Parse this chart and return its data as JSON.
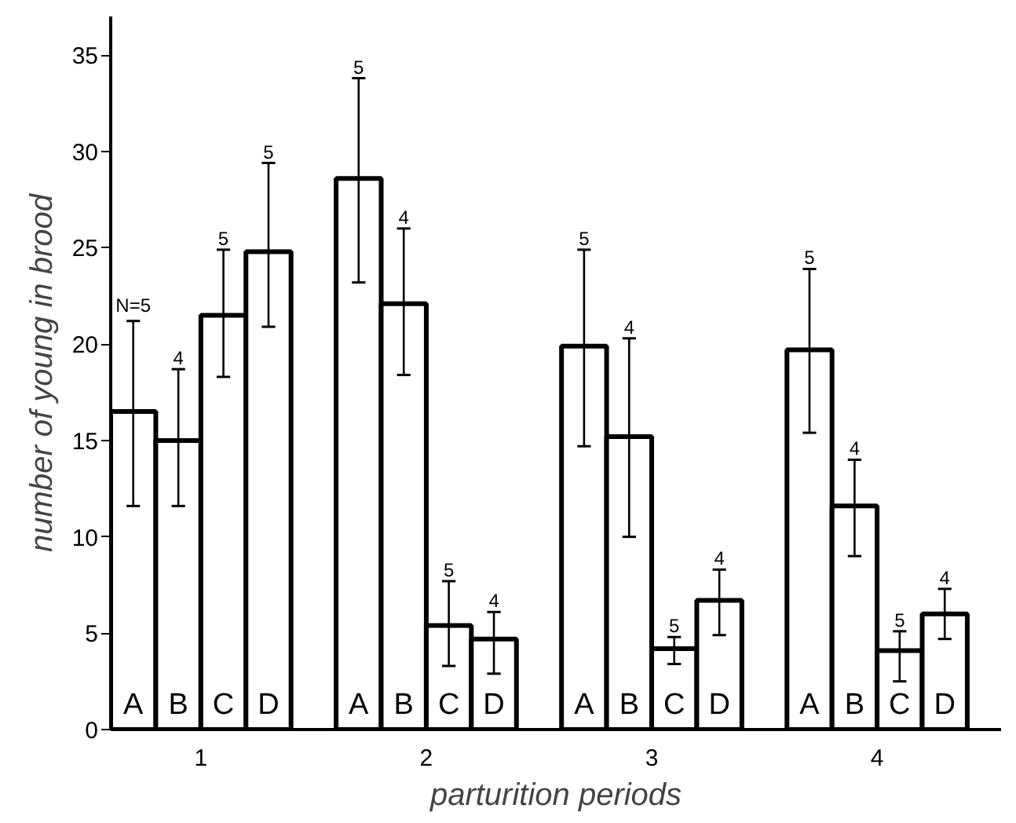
{
  "chart_data": {
    "type": "bar",
    "xlabel": "parturition periods",
    "ylabel": "number of young in brood",
    "categories": [
      "1",
      "2",
      "3",
      "4"
    ],
    "series": [
      {
        "name": "A",
        "color": "#000000",
        "values": [
          16.5,
          28.6,
          19.9,
          19.7
        ],
        "errors": [
          [
            11.6,
            21.2
          ],
          [
            23.2,
            33.8
          ],
          [
            14.7,
            24.9
          ],
          [
            15.4,
            23.9
          ]
        ]
      },
      {
        "name": "B",
        "color": "#000000",
        "values": [
          15.0,
          22.1,
          15.2,
          11.6
        ],
        "errors": [
          [
            11.6,
            18.7
          ],
          [
            18.4,
            26.0
          ],
          [
            10.0,
            20.3
          ],
          [
            9.0,
            14.0
          ]
        ]
      },
      {
        "name": "C",
        "color": "#000000",
        "values": [
          21.5,
          5.4,
          4.2,
          4.1
        ],
        "errors": [
          [
            18.3,
            24.9
          ],
          [
            3.3,
            7.7
          ],
          [
            3.4,
            4.8
          ],
          [
            2.5,
            5.1
          ]
        ]
      },
      {
        "name": "D",
        "color": "#000000",
        "values": [
          24.8,
          4.7,
          6.7,
          6.0
        ],
        "errors": [
          [
            20.9,
            29.4
          ],
          [
            2.9,
            6.1
          ],
          [
            4.9,
            8.3
          ],
          [
            4.7,
            7.3
          ]
        ]
      }
    ],
    "annotations": [
      "N=5",
      "5",
      "5",
      "5",
      "4",
      "4",
      "4",
      "4",
      "5",
      "5",
      "5",
      "5",
      "5",
      "4",
      "4",
      "4"
    ],
    "ylim": [
      0,
      37
    ],
    "yticks": [
      0,
      5,
      10,
      15,
      20,
      25,
      30,
      35
    ],
    "grid": false
  }
}
